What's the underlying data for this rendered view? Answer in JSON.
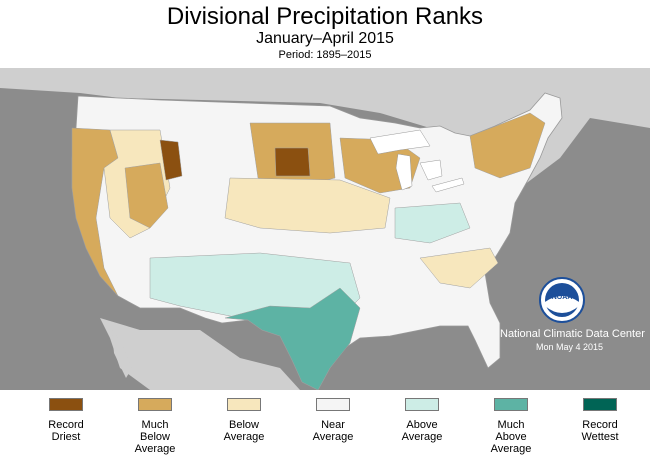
{
  "header": {
    "title": "Divisional Precipitation Ranks",
    "subtitle": "January–April 2015",
    "period": "Period: 1895–2015"
  },
  "map": {
    "logo_text": "NOAA",
    "credit": "National Climatic Data Center",
    "date": "Mon May  4 2015",
    "colors": {
      "background": "#8c8c8c",
      "land_outside": "#cfcfcf",
      "water": "#ffffff"
    }
  },
  "legend": {
    "items": [
      {
        "label": "Record\nDriest",
        "color": "#8b5010"
      },
      {
        "label": "Much\nBelow\nAverage",
        "color": "#d6aa5c"
      },
      {
        "label": "Below\nAverage",
        "color": "#f7e7bd"
      },
      {
        "label": "Near\nAverage",
        "color": "#f5f5f5"
      },
      {
        "label": "Above\nAverage",
        "color": "#cdede6"
      },
      {
        "label": "Much\nAbove\nAverage",
        "color": "#5db3a4"
      },
      {
        "label": "Record\nWettest",
        "color": "#006455"
      }
    ]
  }
}
